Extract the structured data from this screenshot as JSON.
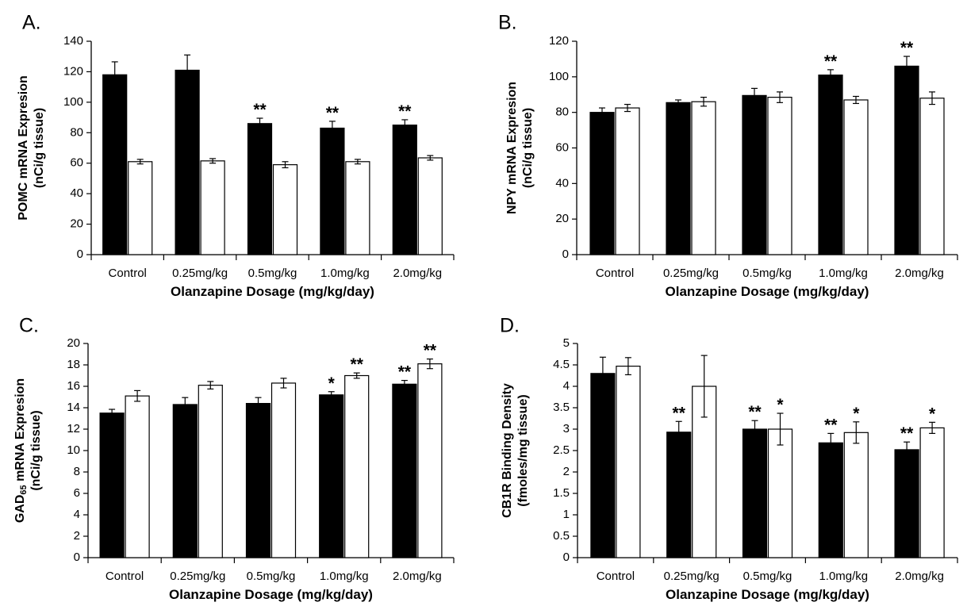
{
  "chart_data": [
    {
      "panel": "A.",
      "type": "bar",
      "categories": [
        "Control",
        "0.25mg/kg",
        "0.5mg/kg",
        "1.0mg/kg",
        "2.0mg/kg"
      ],
      "series": [
        {
          "color": "#000000",
          "values": [
            118,
            121,
            86,
            83,
            85
          ],
          "errors": [
            8.5,
            10,
            3.5,
            4.5,
            3.5
          ],
          "sig": [
            "",
            "",
            "**",
            "**",
            "**"
          ]
        },
        {
          "color": "#ffffff",
          "values": [
            61,
            61.5,
            59,
            61,
            63.5
          ],
          "errors": [
            1.5,
            1.5,
            2,
            1.5,
            1.5
          ],
          "sig": [
            "",
            "",
            "",
            "",
            ""
          ]
        }
      ],
      "xlabel": "Olanzapine Dosage (mg/kg/day)",
      "ylabel_lines": [
        "POMC mRNA Expresion",
        "(nCi/g tissue)"
      ],
      "ylim": [
        0,
        140
      ],
      "yticks": [
        0,
        20,
        40,
        60,
        80,
        100,
        120,
        140
      ],
      "grid": false
    },
    {
      "panel": "B.",
      "type": "bar",
      "categories": [
        "Control",
        "0.25mg/kg",
        "0.5mg/kg",
        "1.0mg/kg",
        "2.0mg/kg"
      ],
      "series": [
        {
          "color": "#000000",
          "values": [
            80,
            85.5,
            89.5,
            101,
            106
          ],
          "errors": [
            2.5,
            1.5,
            4,
            3,
            5.5
          ],
          "sig": [
            "",
            "",
            "",
            "**",
            "**"
          ]
        },
        {
          "color": "#ffffff",
          "values": [
            82.5,
            86,
            88.5,
            87,
            88
          ],
          "errors": [
            2,
            2.5,
            3,
            2,
            3.5
          ],
          "sig": [
            "",
            "",
            "",
            "",
            ""
          ]
        }
      ],
      "xlabel": "Olanzapine Dosage (mg/kg/day)",
      "ylabel_lines": [
        "NPY mRNA Expresion",
        "(nCi/g tissue)"
      ],
      "ylim": [
        0,
        120
      ],
      "yticks": [
        0,
        20,
        40,
        60,
        80,
        100,
        120
      ],
      "grid": false
    },
    {
      "panel": "C.",
      "type": "bar",
      "categories": [
        "Control",
        "0.25mg/kg",
        "0.5mg/kg",
        "1.0mg/kg",
        "2.0mg/kg"
      ],
      "series": [
        {
          "color": "#000000",
          "values": [
            13.5,
            14.3,
            14.4,
            15.2,
            16.2
          ],
          "errors": [
            0.35,
            0.65,
            0.55,
            0.3,
            0.35
          ],
          "sig": [
            "",
            "",
            "",
            "*",
            "**"
          ]
        },
        {
          "color": "#ffffff",
          "values": [
            15.1,
            16.1,
            16.3,
            17,
            18.1
          ],
          "errors": [
            0.5,
            0.35,
            0.45,
            0.25,
            0.45
          ],
          "sig": [
            "",
            "",
            "",
            "**",
            "**"
          ]
        }
      ],
      "xlabel": "Olanzapine Dosage (mg/kg/day)",
      "ylabel_main": "GAD",
      "ylabel_sub": "65",
      "ylabel_rest": " mRNA Expresion",
      "ylabel_line2": "(nCi/g tissue)",
      "ylim": [
        0,
        20
      ],
      "yticks": [
        0,
        2,
        4,
        6,
        8,
        10,
        12,
        14,
        16,
        18,
        20
      ],
      "grid": false
    },
    {
      "panel": "D.",
      "type": "bar",
      "categories": [
        "Control",
        "0.25mg/kg",
        "0.5mg/kg",
        "1.0mg/kg",
        "2.0mg/kg"
      ],
      "series": [
        {
          "color": "#000000",
          "values": [
            4.3,
            2.93,
            3.0,
            2.68,
            2.52
          ],
          "errors": [
            0.38,
            0.25,
            0.2,
            0.22,
            0.18
          ],
          "sig": [
            "",
            "**",
            "**",
            "**",
            "**"
          ]
        },
        {
          "color": "#ffffff",
          "values": [
            4.47,
            4.0,
            3.0,
            2.92,
            3.03
          ],
          "errors": [
            0.2,
            0.72,
            0.37,
            0.25,
            0.13
          ],
          "sig": [
            "",
            "",
            "*",
            "*",
            "*"
          ]
        }
      ],
      "xlabel": "Olanzapine Dosage (mg/kg/day)",
      "ylabel_lines": [
        "CB1R Binding Density",
        "(fmoles/mg tissue)"
      ],
      "ylim": [
        0,
        5
      ],
      "yticks": [
        0,
        0.5,
        1,
        1.5,
        2,
        2.5,
        3,
        3.5,
        4,
        4.5,
        5
      ],
      "grid": false
    }
  ]
}
